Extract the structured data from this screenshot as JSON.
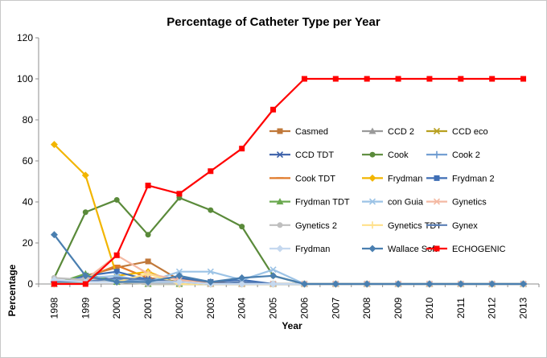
{
  "chart_data": {
    "type": "line",
    "title": "Percentage of Catheter Type per Year",
    "xlabel": "Year",
    "ylabel": "Percentage",
    "x": [
      "1998",
      "1999",
      "2000",
      "2001",
      "2002",
      "2003",
      "2004",
      "2005",
      "2006",
      "2007",
      "2008",
      "2009",
      "2010",
      "2011",
      "2012",
      "2013"
    ],
    "ylim": [
      0,
      120
    ],
    "yticks": [
      "0",
      "20",
      "40",
      "60",
      "80",
      "100",
      "120"
    ],
    "grid": false,
    "legend_position": "inside-right",
    "series": [
      {
        "name": "Casmed",
        "color": "#c0783a",
        "marker": "square",
        "values": [
          0,
          4,
          8,
          11,
          2,
          1,
          0,
          0,
          0,
          0,
          0,
          0,
          0,
          0,
          0,
          0
        ]
      },
      {
        "name": "CCD 2",
        "color": "#9a9a9a",
        "marker": "triangle",
        "values": [
          0,
          3,
          2,
          1,
          1,
          0,
          0,
          0,
          0,
          0,
          0,
          0,
          0,
          0,
          0,
          0
        ]
      },
      {
        "name": "CCD eco",
        "color": "#b8a020",
        "marker": "x",
        "values": [
          0,
          1,
          1,
          0,
          0,
          0,
          0,
          0,
          0,
          0,
          0,
          0,
          0,
          0,
          0,
          0
        ]
      },
      {
        "name": "CCD TDT",
        "color": "#3a5fa8",
        "marker": "x",
        "values": [
          0,
          4,
          2,
          3,
          1,
          0,
          0,
          0,
          0,
          0,
          0,
          0,
          0,
          0,
          0,
          0
        ]
      },
      {
        "name": "Cook",
        "color": "#5a8a3a",
        "marker": "circle",
        "values": [
          3,
          35,
          41,
          24,
          42,
          36,
          28,
          4,
          0,
          0,
          0,
          0,
          0,
          0,
          0,
          0
        ]
      },
      {
        "name": "Cook 2",
        "color": "#6c9ad0",
        "marker": "plus",
        "values": [
          0,
          1,
          2,
          1,
          0,
          0,
          0,
          0,
          0,
          0,
          0,
          0,
          0,
          0,
          0,
          0
        ]
      },
      {
        "name": "Cook TDT",
        "color": "#e07a2a",
        "marker": "dash",
        "values": [
          0,
          3,
          9,
          3,
          1,
          0,
          0,
          0,
          0,
          0,
          0,
          0,
          0,
          0,
          0,
          0
        ]
      },
      {
        "name": "Frydman",
        "color": "#f2b500",
        "marker": "diamond",
        "values": [
          68,
          53,
          4,
          6,
          0,
          0,
          0,
          0,
          0,
          0,
          0,
          0,
          0,
          0,
          0,
          0
        ]
      },
      {
        "name": "Frydman 2",
        "color": "#3f6fb5",
        "marker": "square",
        "values": [
          0,
          4,
          6,
          2,
          3,
          1,
          2,
          0,
          0,
          0,
          0,
          0,
          0,
          0,
          0,
          0
        ]
      },
      {
        "name": "Frydman TDT",
        "color": "#6aa84f",
        "marker": "triangle",
        "values": [
          0,
          5,
          1,
          0,
          0,
          0,
          0,
          0,
          0,
          0,
          0,
          0,
          0,
          0,
          0,
          0
        ]
      },
      {
        "name": "con Guia",
        "color": "#9cc3e6",
        "marker": "x",
        "values": [
          0,
          3,
          4,
          1,
          6,
          6,
          2,
          7,
          0,
          0,
          0,
          0,
          0,
          0,
          0,
          0
        ]
      },
      {
        "name": "Gynetics",
        "color": "#f4b9a3",
        "marker": "x",
        "values": [
          0,
          2,
          14,
          5,
          2,
          0,
          0,
          0,
          0,
          0,
          0,
          0,
          0,
          0,
          0,
          0
        ]
      },
      {
        "name": "Gynetics 2",
        "color": "#bfbfbf",
        "marker": "circle",
        "values": [
          3,
          2,
          1,
          0,
          0,
          0,
          0,
          0,
          0,
          0,
          0,
          0,
          0,
          0,
          0,
          0
        ]
      },
      {
        "name": "Gynetics TDT",
        "color": "#ffe08a",
        "marker": "plus",
        "values": [
          0,
          1,
          1,
          5,
          0,
          0,
          0,
          0,
          0,
          0,
          0,
          0,
          0,
          0,
          0,
          0
        ]
      },
      {
        "name": "Gynex",
        "color": "#5b7fb5",
        "marker": "dash",
        "values": [
          1,
          1,
          3,
          2,
          1,
          0,
          1,
          0,
          0,
          0,
          0,
          0,
          0,
          0,
          0,
          0
        ]
      },
      {
        "name": "Frydman",
        "color": "#c5d8ef",
        "marker": "diamond",
        "values": [
          2,
          1,
          1,
          1,
          1,
          0,
          0,
          0,
          0,
          0,
          0,
          0,
          0,
          0,
          0,
          0
        ]
      },
      {
        "name": "Wallace Soft",
        "color": "#4a7fb0",
        "marker": "diamond",
        "values": [
          24,
          4,
          1,
          1,
          4,
          1,
          3,
          4,
          0,
          0,
          0,
          0,
          0,
          0,
          0,
          0
        ]
      },
      {
        "name": "ECHOGENIC",
        "color": "#ff0000",
        "marker": "square",
        "values": [
          0,
          0,
          14,
          48,
          44,
          55,
          66,
          85,
          100,
          100,
          100,
          100,
          100,
          100,
          100,
          100
        ]
      }
    ]
  }
}
